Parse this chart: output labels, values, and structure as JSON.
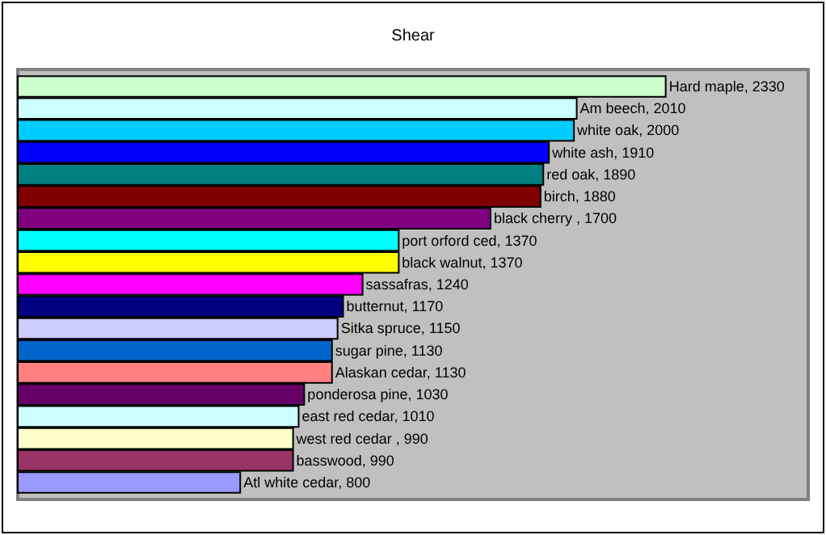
{
  "chart_data": {
    "type": "bar",
    "orientation": "horizontal",
    "title": "Shear",
    "categories": [
      null,
      null,
      null,
      null,
      null,
      null,
      null,
      null,
      null,
      null,
      null,
      null,
      null,
      null,
      null,
      null,
      null,
      null,
      null
    ],
    "values": [
      2330,
      2010,
      2000,
      1910,
      1890,
      1880,
      1700,
      1370,
      1370,
      1240,
      1170,
      1150,
      1130,
      1130,
      1030,
      1010,
      990,
      990,
      800
    ],
    "value_labels": [
      "Hard maple, 2330",
      "Am beech, 2010",
      "white oak, 2000",
      "white ash, 1910",
      "red oak, 1890",
      "birch, 1880",
      "black cherry , 1700",
      "port orford ced, 1370",
      "black walnut, 1370",
      "sassafras, 1240",
      "butternut, 1170",
      "Sitka spruce, 1150",
      "sugar pine, 1130",
      "Alaskan cedar, 1130",
      "ponderosa pine, 1030",
      "east red cedar, 1010",
      "west red cedar , 990",
      "basswood, 990",
      "Atl white cedar, 800"
    ],
    "colors": [
      "#ccffcc",
      "#ccffff",
      "#00ccff",
      "#0000ff",
      "#008080",
      "#800000",
      "#800080",
      "#00ffff",
      "#ffff00",
      "#ff00ff",
      "#000080",
      "#ccccff",
      "#0066cc",
      "#ff8080",
      "#660066",
      "#ccffff",
      "#ffffcc",
      "#993366",
      "#9999ff"
    ]
  }
}
